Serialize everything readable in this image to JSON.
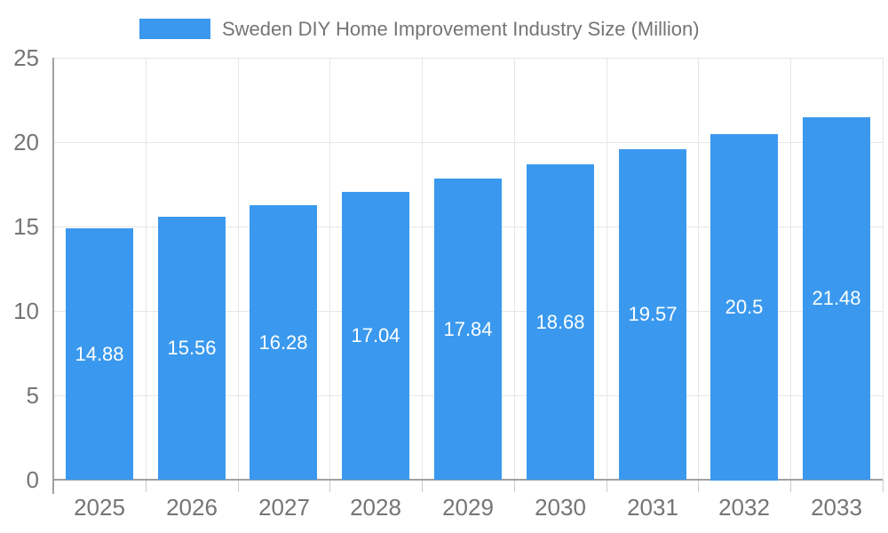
{
  "chart_data": {
    "type": "bar",
    "title": "Sweden DIY Home Improvement Industry Size (Million)",
    "categories": [
      "2025",
      "2026",
      "2027",
      "2028",
      "2029",
      "2030",
      "2031",
      "2032",
      "2033"
    ],
    "values": [
      14.88,
      15.56,
      16.28,
      17.04,
      17.84,
      18.68,
      19.57,
      20.5,
      21.48
    ],
    "value_labels": [
      "14.88",
      "15.56",
      "16.28",
      "17.04",
      "17.84",
      "18.68",
      "19.57",
      "20.5",
      "21.48"
    ],
    "xlabel": "",
    "ylabel": "",
    "ylim": [
      0,
      25
    ],
    "yticks": [
      0,
      5,
      10,
      15,
      20,
      25
    ],
    "ytick_labels": [
      "0",
      "5",
      "10",
      "15",
      "20",
      "25"
    ],
    "grid": true,
    "legend_position": "top"
  },
  "colors": {
    "bar": "#3a99ee",
    "grid": "#e6e6e6",
    "axis": "#a0a0a0",
    "boundary_tick": "#cccccc",
    "text": "#757575",
    "bar_label": "#ffffff",
    "background": "#ffffff"
  }
}
